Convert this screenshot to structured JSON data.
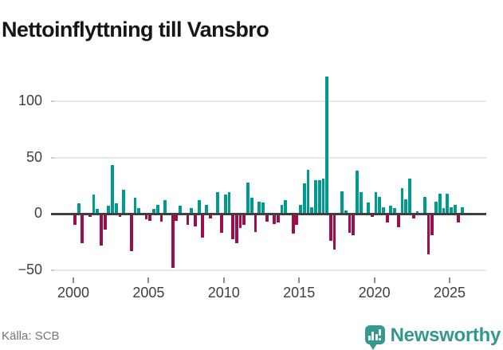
{
  "header": {
    "title": "Nettoinflyttning till Vansbro"
  },
  "footer": {
    "source": "Källa: SCB",
    "brand": "Newsworthy"
  },
  "colors": {
    "positive": "#009a90",
    "negative": "#9c0f4c",
    "grid": "#e7e7e7",
    "zero_axis": "#3f3f3f",
    "tick_label": "#3f3f3f",
    "source_text": "#757575",
    "brand_teal": "#35998f",
    "title_text": "#161616"
  },
  "chart_data": {
    "type": "bar",
    "title": "Nettoinflyttning till Vansbro",
    "xlabel": "",
    "ylabel": "",
    "frequency": "quarterly",
    "legend": "none",
    "grid": "horizontal",
    "ylim": [
      -55,
      125
    ],
    "y_ticks": [
      {
        "value": 100,
        "label": "100"
      },
      {
        "value": 50,
        "label": "50"
      },
      {
        "value": 0,
        "label": "0"
      },
      {
        "value": -50,
        "label": "−50"
      }
    ],
    "x_ticks": [
      {
        "year": 2000,
        "label": "2000"
      },
      {
        "year": 2005,
        "label": "2005"
      },
      {
        "year": 2010,
        "label": "2010"
      },
      {
        "year": 2015,
        "label": "2015"
      },
      {
        "year": 2020,
        "label": "2020"
      },
      {
        "year": 2025,
        "label": "2025"
      }
    ],
    "series": [
      {
        "year": 2000,
        "values": [
          -10,
          9,
          -26,
          0
        ]
      },
      {
        "year": 2001,
        "values": [
          -3,
          17,
          4,
          -28
        ]
      },
      {
        "year": 2002,
        "values": [
          -14,
          7,
          43,
          9
        ]
      },
      {
        "year": 2003,
        "values": [
          -3,
          21,
          0,
          -33
        ]
      },
      {
        "year": 2004,
        "values": [
          14,
          5,
          0,
          -5
        ]
      },
      {
        "year": 2005,
        "values": [
          -6,
          4,
          8,
          -7
        ]
      },
      {
        "year": 2006,
        "values": [
          12,
          0,
          -48,
          -6
        ]
      },
      {
        "year": 2007,
        "values": [
          7,
          0,
          -10,
          5
        ]
      },
      {
        "year": 2008,
        "values": [
          -11,
          12,
          -21,
          8
        ]
      },
      {
        "year": 2009,
        "values": [
          -4,
          0,
          19,
          -17
        ]
      },
      {
        "year": 2010,
        "values": [
          17,
          19,
          -23,
          -26
        ]
      },
      {
        "year": 2011,
        "values": [
          -13,
          -10,
          28,
          14
        ]
      },
      {
        "year": 2012,
        "values": [
          -16,
          11,
          10,
          -7
        ]
      },
      {
        "year": 2013,
        "values": [
          0,
          -9,
          -8,
          8
        ]
      },
      {
        "year": 2014,
        "values": [
          12,
          0,
          -18,
          -10
        ]
      },
      {
        "year": 2015,
        "values": [
          8,
          27,
          39,
          6
        ]
      },
      {
        "year": 2016,
        "values": [
          30,
          30,
          31,
          122
        ]
      },
      {
        "year": 2017,
        "values": [
          -24,
          -32,
          0,
          20
        ]
      },
      {
        "year": 2018,
        "values": [
          3,
          -17,
          -19,
          38
        ]
      },
      {
        "year": 2019,
        "values": [
          19,
          0,
          10,
          -3
        ]
      },
      {
        "year": 2020,
        "values": [
          19,
          15,
          6,
          -8
        ]
      },
      {
        "year": 2021,
        "values": [
          7,
          5,
          -12,
          23
        ]
      },
      {
        "year": 2022,
        "values": [
          13,
          31,
          -4,
          2
        ]
      },
      {
        "year": 2023,
        "values": [
          1,
          15,
          -36,
          -19
        ]
      },
      {
        "year": 2024,
        "values": [
          11,
          18,
          5,
          18
        ]
      },
      {
        "year": 2025,
        "values": [
          6,
          8,
          -8,
          6
        ]
      }
    ]
  }
}
